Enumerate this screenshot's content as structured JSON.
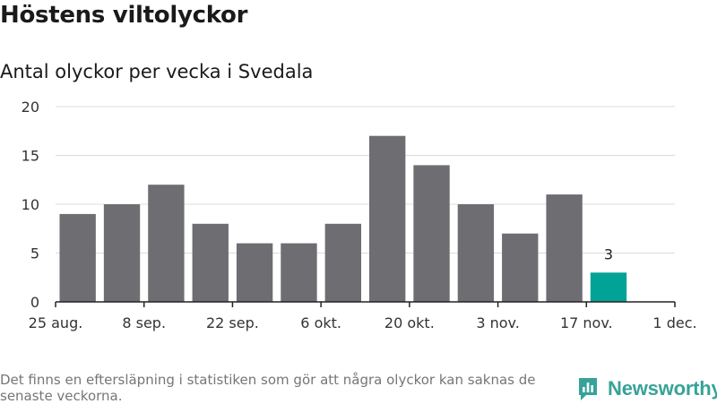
{
  "title": "Höstens viltolyckor",
  "subtitle": "Antal olyckor per vecka i Svedala",
  "footnote": "Det finns en eftersläpning i statistiken som gör att några olyckor kan saknas de senaste veckorna.",
  "brand": {
    "name": "Newsworthy",
    "icon": "newsworthy-logo-icon",
    "color": "#36a398"
  },
  "colors": {
    "bar": "#6e6d72",
    "highlight": "#00a396",
    "grid": "#dcdcdc",
    "axis": "#222222"
  },
  "chart_data": {
    "type": "bar",
    "x_ticks": [
      "25 aug.",
      "8 sep.",
      "22 sep.",
      "6 okt.",
      "20 okt.",
      "3 nov.",
      "17 nov.",
      "1 dec."
    ],
    "series": [
      {
        "values": [
          9,
          10,
          12,
          8,
          6,
          6,
          8,
          17,
          14,
          10,
          7,
          11,
          3
        ]
      }
    ],
    "highlight_index": 12,
    "data_labels": [
      {
        "index": 12,
        "text": "3"
      }
    ],
    "ylim": [
      0,
      20
    ],
    "y_ticks": [
      0,
      5,
      10,
      15,
      20
    ],
    "grid": true,
    "xlabel": "",
    "ylabel": ""
  }
}
